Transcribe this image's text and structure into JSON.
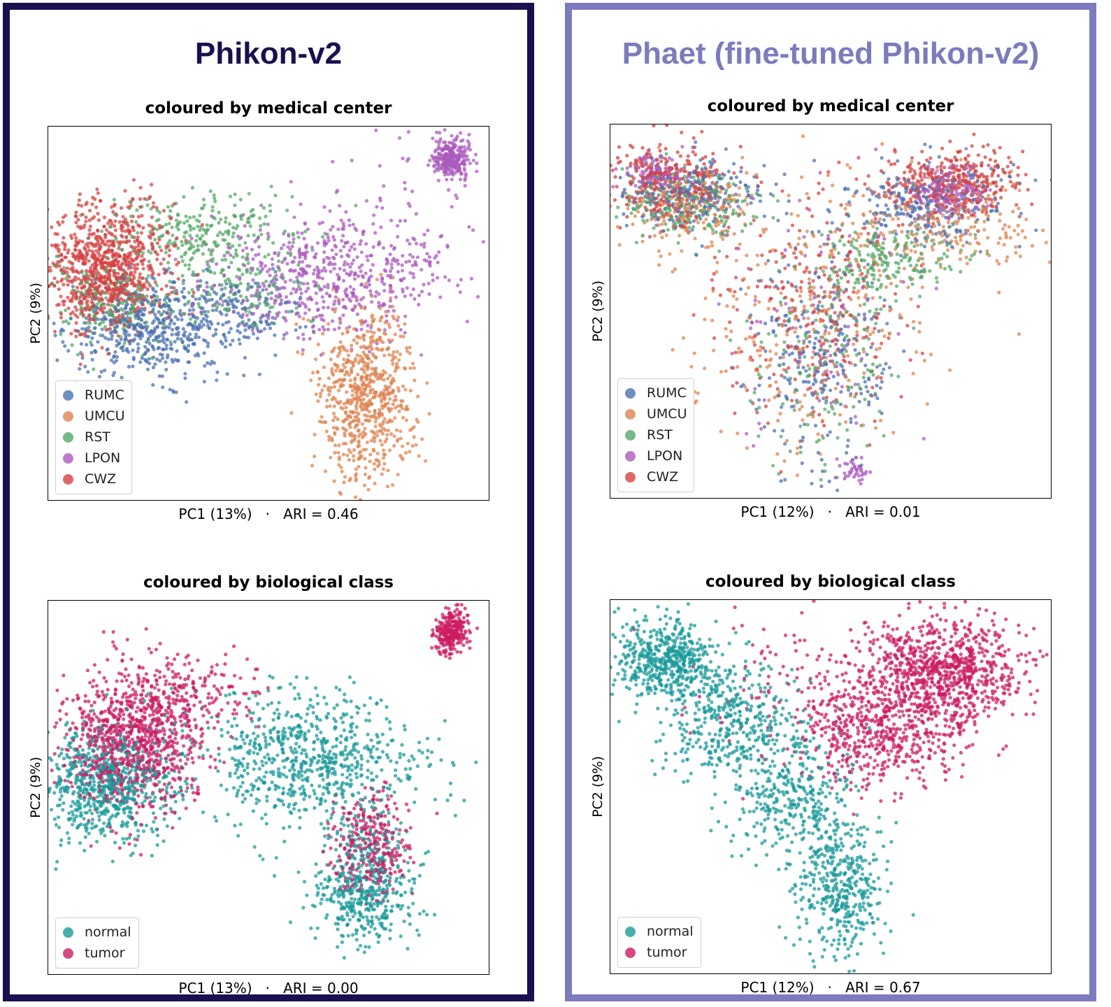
{
  "panels": [
    {
      "title": "Phikon-v2",
      "title_color": "#1c0f4f"
    },
    {
      "title": "Phaet (fine-tuned Phikon-v2)",
      "title_color": "#7b7bbd"
    }
  ],
  "chart_data": [
    {
      "type": "scatter",
      "panel": "Phikon-v2",
      "title": "coloured by medical center",
      "xlabel": "PC1 (13%)",
      "metric": "ARI = 0.46",
      "ylabel": "PC2 (9%)",
      "legend_position": "lower left",
      "grid": false,
      "series": [
        {
          "name": "RUMC",
          "color": "#4c72b0",
          "clusters": [
            {
              "x": -1.7,
              "y": -0.2,
              "sx": 1.1,
              "sy": 0.65,
              "n": 500
            },
            {
              "x": 0.8,
              "y": 0.3,
              "sx": 0.9,
              "sy": 0.6,
              "n": 150
            }
          ]
        },
        {
          "name": "UMCU",
          "color": "#dd8452",
          "clusters": [
            {
              "x": 4.2,
              "y": -2.0,
              "sx": 0.65,
              "sy": 1.25,
              "n": 700
            }
          ]
        },
        {
          "name": "RST",
          "color": "#55a868",
          "clusters": [
            {
              "x": -0.2,
              "y": 2.5,
              "sx": 1.3,
              "sy": 0.55,
              "n": 260
            },
            {
              "x": 0.7,
              "y": 0.8,
              "sx": 1.0,
              "sy": 0.5,
              "n": 120
            },
            {
              "x": -2.8,
              "y": 0.6,
              "sx": 0.8,
              "sy": 0.6,
              "n": 200
            }
          ]
        },
        {
          "name": "LPON",
          "color": "#ab5bbd",
          "clusters": [
            {
              "x": 3.2,
              "y": 1.3,
              "sx": 1.6,
              "sy": 0.85,
              "n": 600
            },
            {
              "x": 6.5,
              "y": 4.6,
              "sx": 0.25,
              "sy": 0.3,
              "n": 280
            },
            {
              "x": 5.0,
              "y": 4.0,
              "sx": 1.3,
              "sy": 0.9,
              "n": 25
            }
          ]
        },
        {
          "name": "CWZ",
          "color": "#d64242",
          "clusters": [
            {
              "x": -2.9,
              "y": 1.5,
              "sx": 0.85,
              "sy": 0.85,
              "n": 900
            }
          ]
        }
      ],
      "xlim": [
        -4.5,
        7.5
      ],
      "ylim": [
        -5.0,
        5.5
      ]
    },
    {
      "type": "scatter",
      "panel": "Phikon-v2",
      "title": "coloured by biological class",
      "xlabel": "PC1 (13%)",
      "metric": "ARI = 0.00",
      "ylabel": "PC2 (9%)",
      "legend_position": "lower left",
      "grid": false,
      "series": [
        {
          "name": "normal",
          "color": "#1a9999",
          "clusters": [
            {
              "x": -2.9,
              "y": 0.3,
              "sx": 0.85,
              "sy": 0.8,
              "n": 700
            },
            {
              "x": 2.5,
              "y": 1.0,
              "sx": 1.6,
              "sy": 0.95,
              "n": 750
            },
            {
              "x": 4.1,
              "y": -2.8,
              "sx": 0.7,
              "sy": 0.7,
              "n": 380
            },
            {
              "x": 4.2,
              "y": -1.5,
              "sx": 0.6,
              "sy": 0.8,
              "n": 120
            }
          ]
        },
        {
          "name": "tumor",
          "color": "#cc1c63",
          "clusters": [
            {
              "x": -2.2,
              "y": 1.5,
              "sx": 0.95,
              "sy": 1.0,
              "n": 950
            },
            {
              "x": -0.6,
              "y": 2.9,
              "sx": 0.9,
              "sy": 0.5,
              "n": 160
            },
            {
              "x": 6.5,
              "y": 4.6,
              "sx": 0.25,
              "sy": 0.3,
              "n": 280
            },
            {
              "x": 4.3,
              "y": -1.4,
              "sx": 0.5,
              "sy": 0.75,
              "n": 300
            }
          ]
        }
      ],
      "xlim": [
        -4.5,
        7.5
      ],
      "ylim": [
        -5.0,
        5.5
      ]
    },
    {
      "type": "scatter",
      "panel": "Phaet (fine-tuned Phikon-v2)",
      "title": "coloured by medical center",
      "xlabel": "PC1 (12%)",
      "metric": "ARI = 0.01",
      "ylabel": "PC2 (9%)",
      "legend_position": "lower left",
      "grid": false,
      "series": [
        {
          "name": "RUMC",
          "color": "#4c72b0",
          "clusters": [
            {
              "x": -3.0,
              "y": 3.0,
              "sx": 0.9,
              "sy": 0.5,
              "n": 250
            },
            {
              "x": 0.5,
              "y": -1.5,
              "sx": 1.0,
              "sy": 1.6,
              "n": 250
            },
            {
              "x": 3.3,
              "y": 2.8,
              "sx": 1.2,
              "sy": 0.6,
              "n": 250
            }
          ]
        },
        {
          "name": "UMCU",
          "color": "#dd8452",
          "clusters": [
            {
              "x": -3.0,
              "y": 2.6,
              "sx": 1.0,
              "sy": 0.6,
              "n": 200
            },
            {
              "x": 0.3,
              "y": -0.5,
              "sx": 1.6,
              "sy": 1.8,
              "n": 300
            },
            {
              "x": 3.6,
              "y": 2.2,
              "sx": 1.3,
              "sy": 0.7,
              "n": 250
            }
          ]
        },
        {
          "name": "RST",
          "color": "#55a868",
          "clusters": [
            {
              "x": -3.0,
              "y": 2.8,
              "sx": 0.9,
              "sy": 0.5,
              "n": 200
            },
            {
              "x": 2.2,
              "y": 1.2,
              "sx": 0.9,
              "sy": 0.5,
              "n": 200
            },
            {
              "x": 0.6,
              "y": -1.8,
              "sx": 1.0,
              "sy": 1.5,
              "n": 150
            }
          ]
        },
        {
          "name": "LPON",
          "color": "#ab5bbd",
          "clusters": [
            {
              "x": -3.8,
              "y": 3.6,
              "sx": 0.35,
              "sy": 0.3,
              "n": 120
            },
            {
              "x": 3.8,
              "y": 3.1,
              "sx": 0.45,
              "sy": 0.35,
              "n": 180
            },
            {
              "x": 1.4,
              "y": -4.7,
              "sx": 0.2,
              "sy": 0.2,
              "n": 40
            },
            {
              "x": 0.5,
              "y": -0.5,
              "sx": 1.2,
              "sy": 1.8,
              "n": 100
            }
          ]
        },
        {
          "name": "CWZ",
          "color": "#d64242",
          "clusters": [
            {
              "x": -3.4,
              "y": 3.4,
              "sx": 0.8,
              "sy": 0.55,
              "n": 300
            },
            {
              "x": 4.0,
              "y": 3.4,
              "sx": 0.9,
              "sy": 0.45,
              "n": 350
            },
            {
              "x": 0.2,
              "y": -0.2,
              "sx": 1.2,
              "sy": 1.6,
              "n": 250
            }
          ]
        }
      ],
      "xlim": [
        -5.0,
        6.5
      ],
      "ylim": [
        -5.5,
        5.0
      ]
    },
    {
      "type": "scatter",
      "panel": "Phaet (fine-tuned Phikon-v2)",
      "title": "coloured by biological class",
      "xlabel": "PC1 (12%)",
      "metric": "ARI = 0.67",
      "ylabel": "PC2 (9%)",
      "legend_position": "lower left",
      "grid": false,
      "series": [
        {
          "name": "normal",
          "color": "#1a9999",
          "clusters": [
            {
              "x": -3.5,
              "y": 3.3,
              "sx": 0.7,
              "sy": 0.55,
              "n": 550
            },
            {
              "x": -1.8,
              "y": 1.5,
              "sx": 0.9,
              "sy": 0.8,
              "n": 400
            },
            {
              "x": -0.2,
              "y": -0.6,
              "sx": 0.8,
              "sy": 0.9,
              "n": 350
            },
            {
              "x": 1.0,
              "y": -3.2,
              "sx": 0.6,
              "sy": 1.0,
              "n": 400
            }
          ]
        },
        {
          "name": "tumor",
          "color": "#cc1c63",
          "clusters": [
            {
              "x": 3.6,
              "y": 3.0,
              "sx": 1.1,
              "sy": 0.75,
              "n": 900
            },
            {
              "x": 2.0,
              "y": 1.3,
              "sx": 1.1,
              "sy": 0.7,
              "n": 500
            },
            {
              "x": 0.5,
              "y": 2.6,
              "sx": 1.8,
              "sy": 1.0,
              "n": 150
            }
          ]
        }
      ],
      "xlim": [
        -5.0,
        6.5
      ],
      "ylim": [
        -5.5,
        5.0
      ]
    }
  ]
}
